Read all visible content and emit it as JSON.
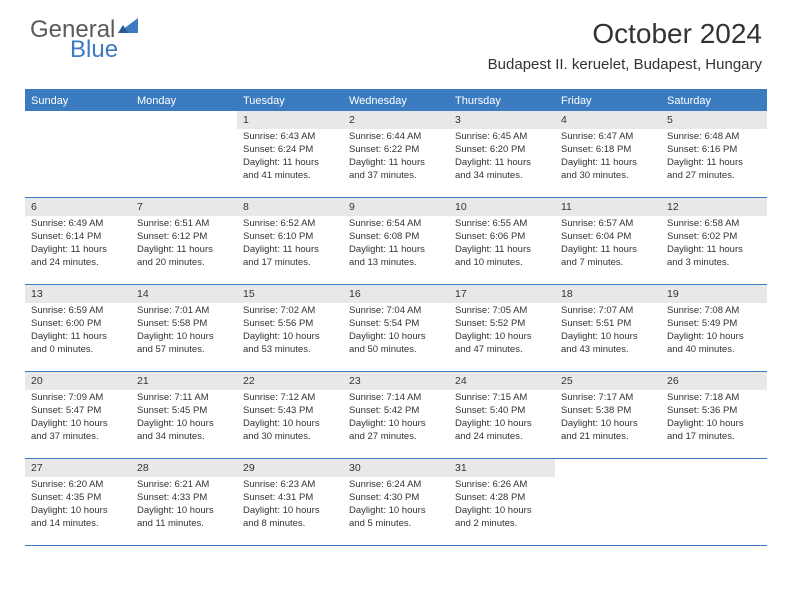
{
  "logo": {
    "text1": "General",
    "text2": "Blue"
  },
  "title": "October 2024",
  "location": "Budapest II. keruelet, Budapest, Hungary",
  "colors": {
    "header_bg": "#3b7bbf",
    "daynum_bg": "#e8e8e8",
    "border": "#3b7bbf",
    "text": "#333333",
    "white": "#ffffff"
  },
  "weekdays": [
    "Sunday",
    "Monday",
    "Tuesday",
    "Wednesday",
    "Thursday",
    "Friday",
    "Saturday"
  ],
  "weeks": [
    [
      null,
      null,
      {
        "n": "1",
        "sr": "6:43 AM",
        "ss": "6:24 PM",
        "dh": "11",
        "dm": "41"
      },
      {
        "n": "2",
        "sr": "6:44 AM",
        "ss": "6:22 PM",
        "dh": "11",
        "dm": "37"
      },
      {
        "n": "3",
        "sr": "6:45 AM",
        "ss": "6:20 PM",
        "dh": "11",
        "dm": "34"
      },
      {
        "n": "4",
        "sr": "6:47 AM",
        "ss": "6:18 PM",
        "dh": "11",
        "dm": "30"
      },
      {
        "n": "5",
        "sr": "6:48 AM",
        "ss": "6:16 PM",
        "dh": "11",
        "dm": "27"
      }
    ],
    [
      {
        "n": "6",
        "sr": "6:49 AM",
        "ss": "6:14 PM",
        "dh": "11",
        "dm": "24"
      },
      {
        "n": "7",
        "sr": "6:51 AM",
        "ss": "6:12 PM",
        "dh": "11",
        "dm": "20"
      },
      {
        "n": "8",
        "sr": "6:52 AM",
        "ss": "6:10 PM",
        "dh": "11",
        "dm": "17"
      },
      {
        "n": "9",
        "sr": "6:54 AM",
        "ss": "6:08 PM",
        "dh": "11",
        "dm": "13"
      },
      {
        "n": "10",
        "sr": "6:55 AM",
        "ss": "6:06 PM",
        "dh": "11",
        "dm": "10"
      },
      {
        "n": "11",
        "sr": "6:57 AM",
        "ss": "6:04 PM",
        "dh": "11",
        "dm": "7"
      },
      {
        "n": "12",
        "sr": "6:58 AM",
        "ss": "6:02 PM",
        "dh": "11",
        "dm": "3"
      }
    ],
    [
      {
        "n": "13",
        "sr": "6:59 AM",
        "ss": "6:00 PM",
        "dh": "11",
        "dm": "0"
      },
      {
        "n": "14",
        "sr": "7:01 AM",
        "ss": "5:58 PM",
        "dh": "10",
        "dm": "57"
      },
      {
        "n": "15",
        "sr": "7:02 AM",
        "ss": "5:56 PM",
        "dh": "10",
        "dm": "53"
      },
      {
        "n": "16",
        "sr": "7:04 AM",
        "ss": "5:54 PM",
        "dh": "10",
        "dm": "50"
      },
      {
        "n": "17",
        "sr": "7:05 AM",
        "ss": "5:52 PM",
        "dh": "10",
        "dm": "47"
      },
      {
        "n": "18",
        "sr": "7:07 AM",
        "ss": "5:51 PM",
        "dh": "10",
        "dm": "43"
      },
      {
        "n": "19",
        "sr": "7:08 AM",
        "ss": "5:49 PM",
        "dh": "10",
        "dm": "40"
      }
    ],
    [
      {
        "n": "20",
        "sr": "7:09 AM",
        "ss": "5:47 PM",
        "dh": "10",
        "dm": "37"
      },
      {
        "n": "21",
        "sr": "7:11 AM",
        "ss": "5:45 PM",
        "dh": "10",
        "dm": "34"
      },
      {
        "n": "22",
        "sr": "7:12 AM",
        "ss": "5:43 PM",
        "dh": "10",
        "dm": "30"
      },
      {
        "n": "23",
        "sr": "7:14 AM",
        "ss": "5:42 PM",
        "dh": "10",
        "dm": "27"
      },
      {
        "n": "24",
        "sr": "7:15 AM",
        "ss": "5:40 PM",
        "dh": "10",
        "dm": "24"
      },
      {
        "n": "25",
        "sr": "7:17 AM",
        "ss": "5:38 PM",
        "dh": "10",
        "dm": "21"
      },
      {
        "n": "26",
        "sr": "7:18 AM",
        "ss": "5:36 PM",
        "dh": "10",
        "dm": "17"
      }
    ],
    [
      {
        "n": "27",
        "sr": "6:20 AM",
        "ss": "4:35 PM",
        "dh": "10",
        "dm": "14"
      },
      {
        "n": "28",
        "sr": "6:21 AM",
        "ss": "4:33 PM",
        "dh": "10",
        "dm": "11"
      },
      {
        "n": "29",
        "sr": "6:23 AM",
        "ss": "4:31 PM",
        "dh": "10",
        "dm": "8"
      },
      {
        "n": "30",
        "sr": "6:24 AM",
        "ss": "4:30 PM",
        "dh": "10",
        "dm": "5"
      },
      {
        "n": "31",
        "sr": "6:26 AM",
        "ss": "4:28 PM",
        "dh": "10",
        "dm": "2"
      },
      null,
      null
    ]
  ],
  "labels": {
    "sunrise": "Sunrise:",
    "sunset": "Sunset:",
    "daylight": "Daylight:",
    "hours": "hours",
    "and": "and",
    "minutes": "minutes."
  }
}
